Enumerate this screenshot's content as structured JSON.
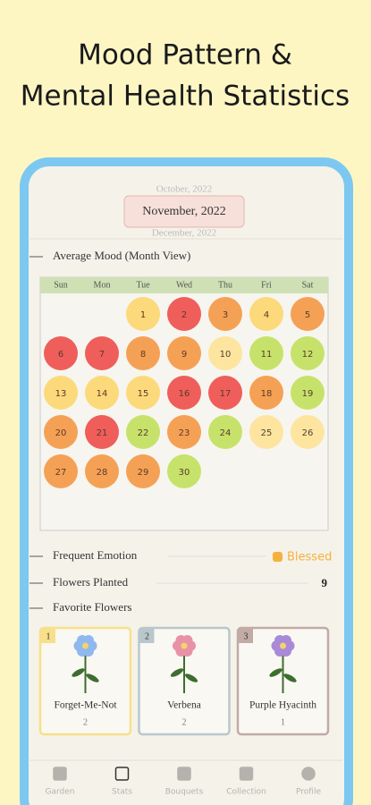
{
  "header": {
    "title_lines": [
      "Mood Pattern &",
      "Mental Health Statistics"
    ]
  },
  "month_picker": {
    "previous": "October, 2022",
    "current": "November, 2022",
    "next": "December, 2022"
  },
  "average_mood": {
    "title": "Average Mood (Month View)",
    "weekdays": [
      "Sun",
      "Mon",
      "Tue",
      "Wed",
      "Thu",
      "Fri",
      "Sat"
    ],
    "weeks": [
      [
        null,
        null,
        {
          "day": "1",
          "color": "#fcd97a"
        },
        {
          "day": "2",
          "color": "#ef5e5b"
        },
        {
          "day": "3",
          "color": "#f5a155"
        },
        {
          "day": "4",
          "color": "#fcd97a"
        },
        {
          "day": "5",
          "color": "#f5a155"
        }
      ],
      [
        {
          "day": "6",
          "color": "#ef5e5b"
        },
        {
          "day": "7",
          "color": "#ef5e5b"
        },
        {
          "day": "8",
          "color": "#f5a155"
        },
        {
          "day": "9",
          "color": "#f5a155"
        },
        {
          "day": "10",
          "color": "#fde5a0"
        },
        {
          "day": "11",
          "color": "#c7e26a"
        },
        {
          "day": "12",
          "color": "#c7e26a"
        }
      ],
      [
        {
          "day": "13",
          "color": "#fcd97a"
        },
        {
          "day": "14",
          "color": "#fcd97a"
        },
        {
          "day": "15",
          "color": "#fcd97a"
        },
        {
          "day": "16",
          "color": "#ef5e5b"
        },
        {
          "day": "17",
          "color": "#ef5e5b"
        },
        {
          "day": "18",
          "color": "#f5a155"
        },
        {
          "day": "19",
          "color": "#c7e26a"
        }
      ],
      [
        {
          "day": "20",
          "color": "#f5a155"
        },
        {
          "day": "21",
          "color": "#ef5e5b"
        },
        {
          "day": "22",
          "color": "#c7e26a"
        },
        {
          "day": "23",
          "color": "#f5a155"
        },
        {
          "day": "24",
          "color": "#c7e26a"
        },
        {
          "day": "25",
          "color": "#fde5a0"
        },
        {
          "day": "26",
          "color": "#fde5a0"
        }
      ],
      [
        {
          "day": "27",
          "color": "#f5a155"
        },
        {
          "day": "28",
          "color": "#f5a155"
        },
        {
          "day": "29",
          "color": "#f5a155"
        },
        {
          "day": "30",
          "color": "#c7e26a"
        }
      ]
    ]
  },
  "stats": {
    "frequent_emotion": {
      "label": "Frequent Emotion",
      "value": "Blessed"
    },
    "flowers_planted": {
      "label": "Flowers Planted",
      "value": 9
    },
    "favorite_flowers": {
      "label": "Favorite Flowers",
      "items": [
        {
          "rank": 1,
          "name": "Forget-Me-Not",
          "count": 2,
          "border": "#f8e08a",
          "petal": "#8fb8ee"
        },
        {
          "rank": 2,
          "name": "Verbena",
          "count": 2,
          "border": "#b9c7cc",
          "petal": "#e892a8"
        },
        {
          "rank": 3,
          "name": "Purple Hyacinth",
          "count": 1,
          "border": "#c2aaa5",
          "petal": "#a98ad8"
        }
      ]
    }
  },
  "nav": {
    "items": [
      "Garden",
      "Stats",
      "Bouquets",
      "Collection",
      "Profile"
    ],
    "active": "Stats"
  }
}
